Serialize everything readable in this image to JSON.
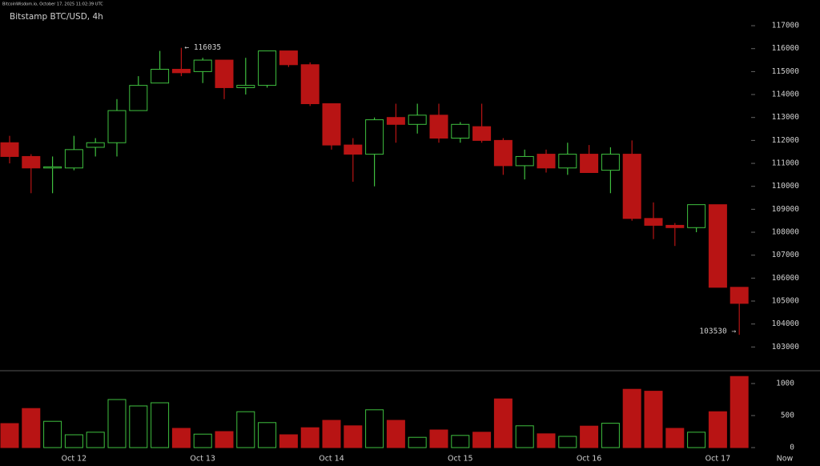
{
  "source": "BitcoinWisdom.io, October 17, 2025 11:02:39 UTC",
  "chart_data": {
    "type": "candlestick",
    "title": "Bitstamp BTC/USD, 4h",
    "categories": [
      null,
      null,
      null,
      "Oct 12",
      null,
      null,
      null,
      null,
      null,
      "Oct 13",
      null,
      null,
      null,
      null,
      null,
      "Oct 14",
      null,
      null,
      null,
      null,
      null,
      "Oct 15",
      null,
      null,
      null,
      null,
      null,
      "Oct 16",
      null,
      null,
      null,
      null,
      null,
      "Oct 17",
      null
    ],
    "end_label": "Now",
    "open": [
      111900,
      111300,
      110800,
      110800,
      111700,
      111900,
      113300,
      114500,
      115100,
      115000,
      115500,
      114300,
      114400,
      115900,
      115300,
      113600,
      111800,
      111400,
      113000,
      112700,
      113100,
      112100,
      112600,
      112000,
      110900,
      111400,
      110800,
      111400,
      110700,
      111400,
      108600,
      108300,
      108200,
      109200,
      105600
    ],
    "high": [
      112200,
      111400,
      111300,
      112200,
      112100,
      113800,
      114800,
      115900,
      116035,
      115600,
      115500,
      115600,
      115900,
      115900,
      115400,
      113600,
      112100,
      113000,
      113600,
      113600,
      113600,
      112800,
      113600,
      112100,
      111600,
      111600,
      111900,
      111800,
      111700,
      112000,
      109300,
      108400,
      109200,
      109200,
      105600
    ],
    "low": [
      111000,
      109700,
      109700,
      110700,
      111300,
      111300,
      113300,
      114500,
      114800,
      114500,
      113800,
      114000,
      114300,
      115200,
      113500,
      111600,
      110200,
      110000,
      111900,
      112300,
      111900,
      111900,
      111900,
      110500,
      110300,
      110600,
      110500,
      110600,
      109700,
      108500,
      107700,
      107400,
      108000,
      105600,
      103530
    ],
    "close": [
      111300,
      110800,
      110850,
      111600,
      111900,
      113300,
      114400,
      115100,
      114950,
      115500,
      114300,
      114400,
      115900,
      115300,
      113600,
      111800,
      111400,
      112900,
      112700,
      113100,
      112100,
      112700,
      112000,
      110900,
      111300,
      110800,
      111400,
      110600,
      111400,
      108600,
      108300,
      108200,
      109200,
      105600,
      104900
    ],
    "volume": [
      375,
      610,
      410,
      200,
      240,
      750,
      650,
      700,
      300,
      210,
      250,
      560,
      390,
      200,
      310,
      425,
      340,
      590,
      425,
      160,
      275,
      190,
      240,
      760,
      340,
      215,
      175,
      335,
      380,
      910,
      880,
      300,
      240,
      560,
      1110
    ],
    "up_color": "#3fbf3f",
    "down_color": "#b81414",
    "ylim": [
      102000,
      117700
    ],
    "yticks": [
      103000,
      104000,
      105000,
      106000,
      107000,
      108000,
      109000,
      110000,
      111000,
      112000,
      113000,
      114000,
      115000,
      116000,
      117000
    ],
    "y2lim": [
      0,
      1175
    ],
    "y2ticks": [
      0,
      500,
      1000
    ],
    "annotations": [
      {
        "value": 116035,
        "label": "← 116035"
      },
      {
        "value": 103530,
        "label": "103530 →"
      }
    ]
  }
}
